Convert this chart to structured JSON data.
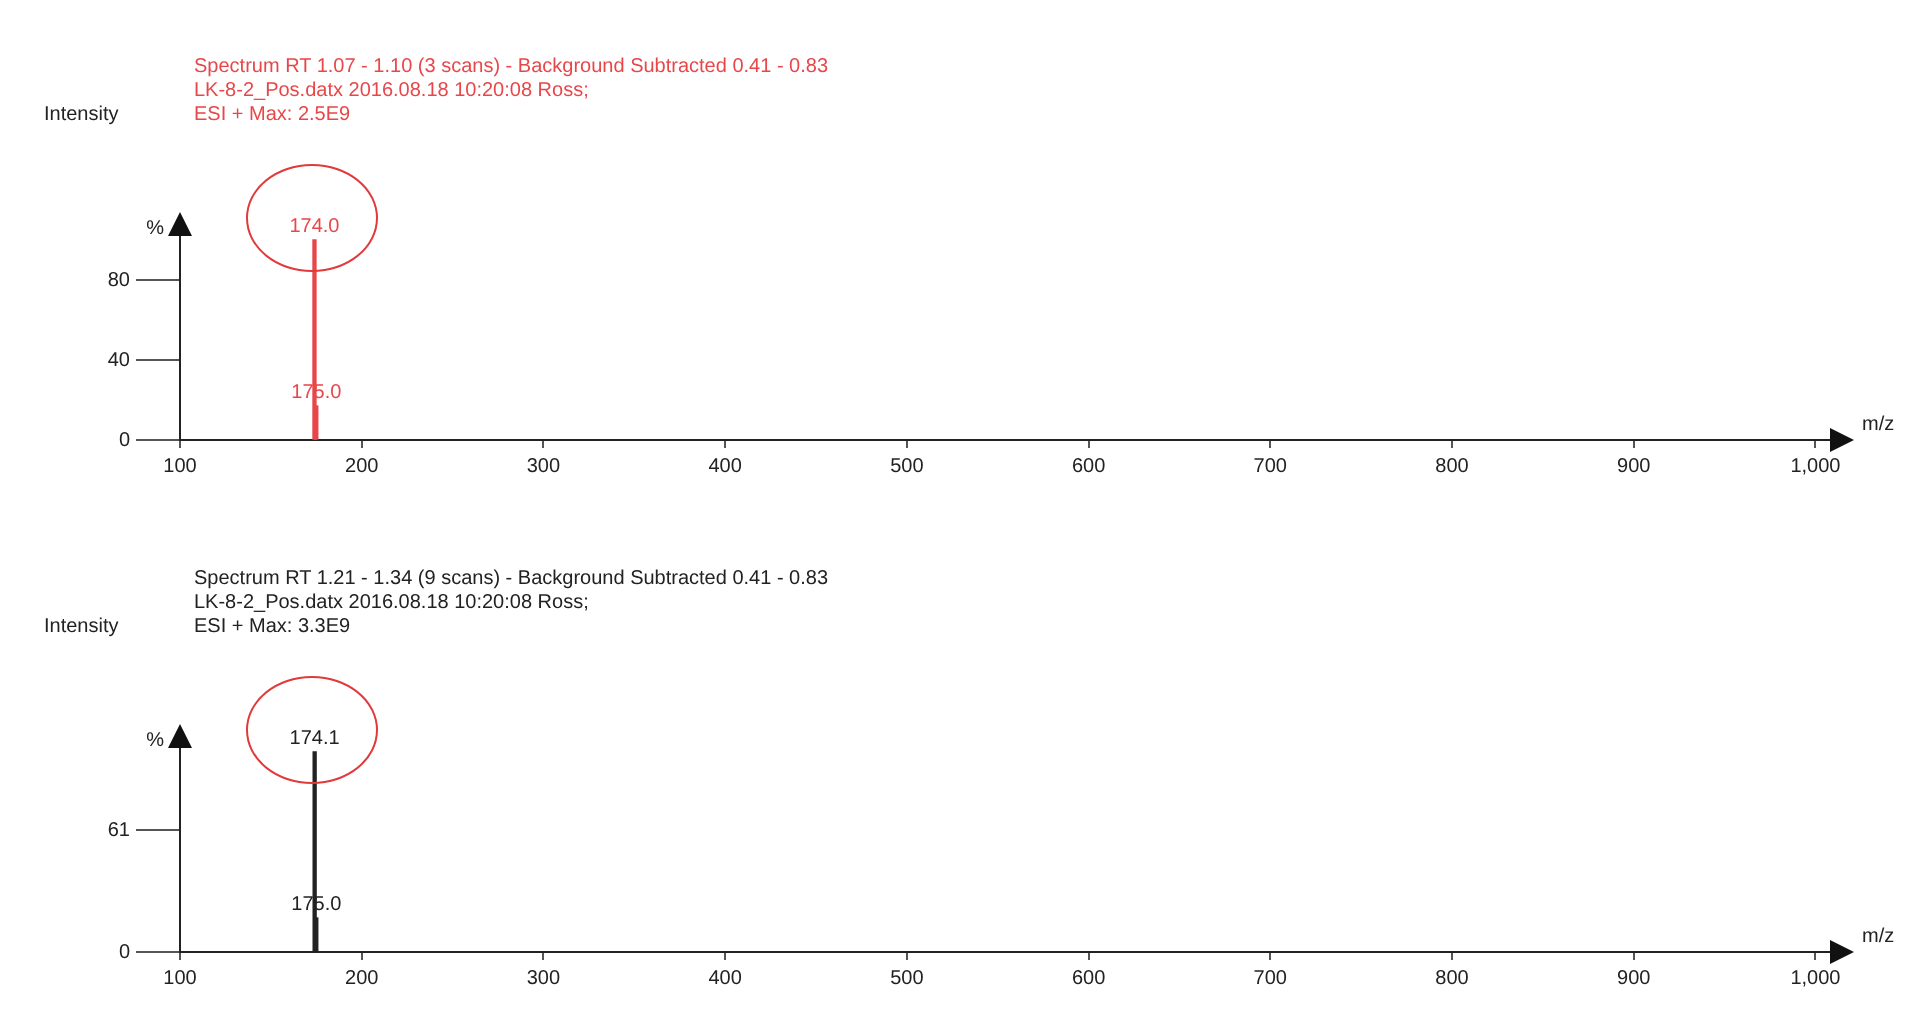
{
  "chart_data": [
    {
      "type": "bar",
      "title": "Spectrum RT 1.07 - 1.10 (3 scans) - Background Subtracted 0.41 - 0.83",
      "subtitle": "LK-8-2_Pos.datx 2016.08.18 10:20:08 Ross;",
      "annotations": [
        "ESI + Max: 2.5E9",
        "%",
        {
          "text": "174.0",
          "x": 174.0,
          "y": 100
        },
        {
          "text": "175.0",
          "x": 175.0,
          "y": 17
        }
      ],
      "ylabel": "Intensity",
      "xlabel": "m/z",
      "x": [
        174.0,
        175.0
      ],
      "series": [
        {
          "color": "#e8474a",
          "values": [
            100,
            17
          ]
        }
      ],
      "xlim": [
        100,
        1008
      ],
      "xticks": [
        100,
        200,
        300,
        400,
        500,
        600,
        700,
        800,
        900,
        {
          "value": 1000,
          "label": "1,000"
        }
      ],
      "ylim": [
        0,
        108
      ],
      "yticks": [
        0,
        40,
        80
      ],
      "grid": false,
      "legend": false
    },
    {
      "type": "bar",
      "title": "Spectrum RT 1.21 - 1.34 (9 scans) - Background Subtracted 0.41 - 0.83",
      "subtitle": "LK-8-2_Pos.datx 2016.08.18 10:20:08 Ross;",
      "annotations": [
        "ESI + Max: 3.3E9",
        "%",
        {
          "text": "174.1",
          "x": 174.1,
          "y": 100
        },
        {
          "text": "175.0",
          "x": 175.0,
          "y": 17
        }
      ],
      "ylabel": "Intensity",
      "xlabel": "m/z",
      "x": [
        174.1,
        175.0
      ],
      "series": [
        {
          "color": "#222222",
          "values": [
            100,
            17
          ]
        }
      ],
      "xlim": [
        100,
        1008
      ],
      "xticks": [
        100,
        200,
        300,
        400,
        500,
        600,
        700,
        800,
        900,
        {
          "value": 1000,
          "label": "1,000"
        }
      ],
      "ylim": [
        0,
        108
      ],
      "yticks": [
        0,
        61
      ],
      "grid": false,
      "legend": false
    }
  ]
}
